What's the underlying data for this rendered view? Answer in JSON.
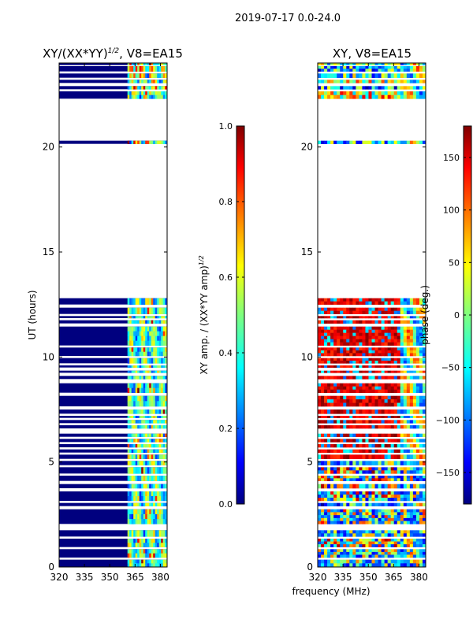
{
  "suptitle": "2019-07-17 0.0-24.0",
  "xlabel_shared": "frequency (MHz)",
  "chart_data": [
    {
      "type": "heatmap",
      "name": "amp-ratio",
      "title": "XY/(XX*YY)",
      "title_exponent": "1/2",
      "title_suffix": ", V8=EA15",
      "ylabel": "UT (hours)",
      "x_range": [
        320,
        384
      ],
      "y_range": [
        0,
        24
      ],
      "xticks": [
        320,
        335,
        350,
        365,
        380
      ],
      "yticks": [
        0,
        5,
        10,
        15,
        20
      ],
      "signal_band_mhz": [
        360.5,
        384
      ],
      "colorbar": {
        "label": "XY amp. / (XX*YY amp)",
        "label_exponent": "1/2",
        "range": [
          0.0,
          1.0
        ],
        "ticks": [
          "0.0",
          "0.2",
          "0.4",
          "0.6",
          "0.8",
          "1.0"
        ],
        "tick_values": [
          0.0,
          0.2,
          0.4,
          0.6,
          0.8,
          1.0
        ],
        "colormap": "jet"
      }
    },
    {
      "type": "heatmap",
      "name": "phase",
      "title": "XY, V8=EA15",
      "ylabel": "",
      "x_range": [
        320,
        384
      ],
      "y_range": [
        0,
        24
      ],
      "xticks": [
        320,
        335,
        350,
        365,
        380
      ],
      "yticks": [
        0,
        5,
        10,
        15,
        20
      ],
      "colorbar": {
        "label": "phase (deg.)",
        "range": [
          -180,
          180
        ],
        "ticks": [
          "−150",
          "−100",
          "−50",
          "0",
          "50",
          "100",
          "150"
        ],
        "tick_values": [
          -150,
          -100,
          -50,
          0,
          50,
          100,
          150
        ],
        "colormap": "jet"
      }
    }
  ],
  "data_rows_ut_hours": [
    [
      0.0,
      0.35
    ],
    [
      0.45,
      0.85
    ],
    [
      0.95,
      1.35
    ],
    [
      1.45,
      1.75
    ],
    [
      2.05,
      2.75
    ],
    [
      2.9,
      3.05
    ],
    [
      3.15,
      3.6
    ],
    [
      3.75,
      3.95
    ],
    [
      4.1,
      4.35
    ],
    [
      4.45,
      4.75
    ],
    [
      4.85,
      5.05
    ],
    [
      5.15,
      5.35
    ],
    [
      5.45,
      5.6
    ],
    [
      5.7,
      5.85
    ],
    [
      5.95,
      6.1
    ],
    [
      6.2,
      6.35
    ],
    [
      6.6,
      6.75
    ],
    [
      6.85,
      7.0
    ],
    [
      7.1,
      7.2
    ],
    [
      7.3,
      7.5
    ],
    [
      7.65,
      8.15
    ],
    [
      8.3,
      8.75
    ],
    [
      8.95,
      9.1
    ],
    [
      9.25,
      9.35
    ],
    [
      9.5,
      9.6
    ],
    [
      9.7,
      9.95
    ],
    [
      10.05,
      10.45
    ],
    [
      10.55,
      11.45
    ],
    [
      11.6,
      11.75
    ],
    [
      11.85,
      11.95
    ],
    [
      12.05,
      12.35
    ],
    [
      12.5,
      12.8
    ],
    [
      20.15,
      20.3
    ],
    [
      22.3,
      22.65
    ],
    [
      22.75,
      22.9
    ],
    [
      23.05,
      23.2
    ],
    [
      23.3,
      23.5
    ],
    [
      23.6,
      23.85
    ],
    [
      23.9,
      24.0
    ]
  ]
}
